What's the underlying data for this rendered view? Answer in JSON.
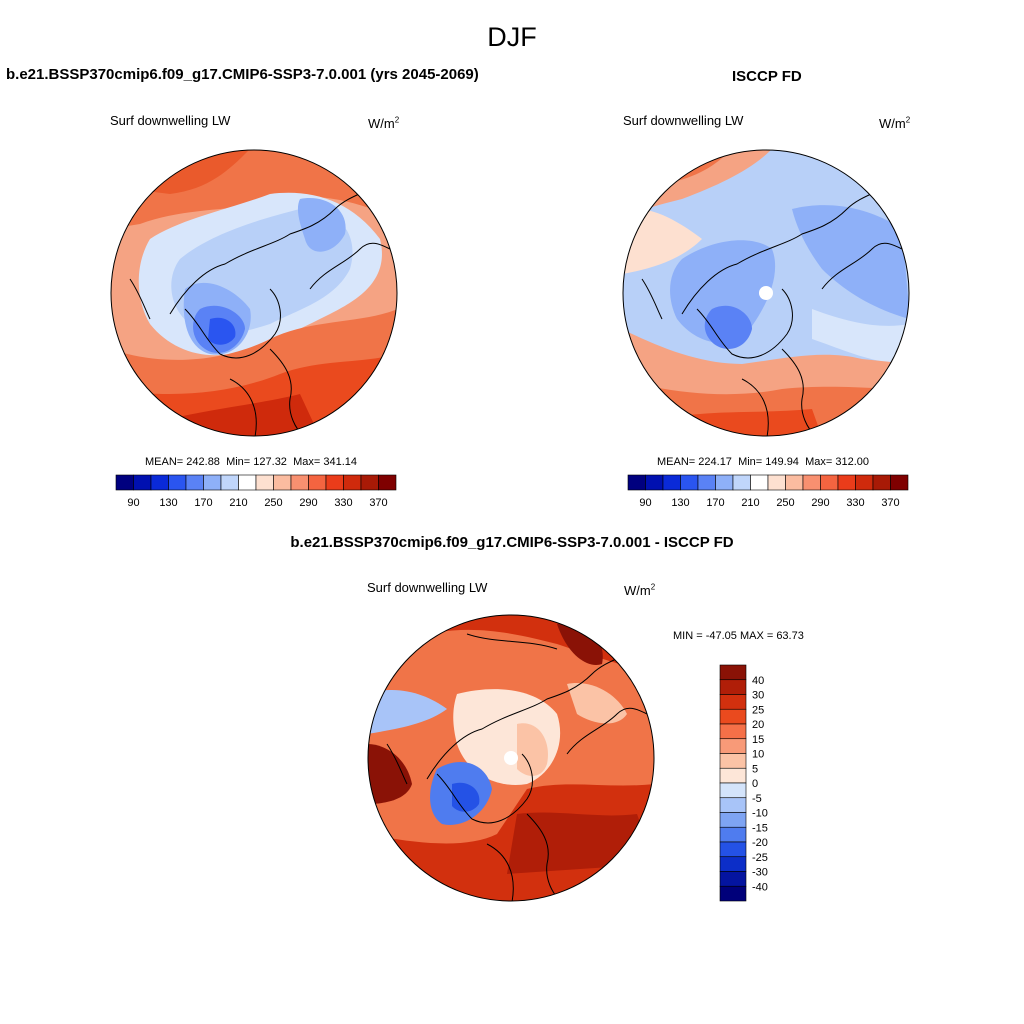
{
  "title": "DJF",
  "panels": [
    {
      "id": "model",
      "title": "b.e21.BSSP370cmip6.f09_g17.CMIP6-SSP3-7.0.001 (yrs 2045-2069)",
      "variable": "Surf downwelling LW",
      "units_base": "W/m",
      "units_exp": "2",
      "stats": {
        "mean_label": "MEAN=",
        "mean": "242.88",
        "min_label": "Min=",
        "min": "127.32",
        "max_label": "Max=",
        "max": "341.14"
      }
    },
    {
      "id": "obs",
      "title": "ISCCP FD",
      "variable": "Surf downwelling LW",
      "units_base": "W/m",
      "units_exp": "2",
      "stats": {
        "mean_label": "MEAN=",
        "mean": "224.17",
        "min_label": "Min=",
        "min": "149.94",
        "max_label": "Max=",
        "max": "312.00"
      }
    },
    {
      "id": "diff",
      "title": "b.e21.BSSP370cmip6.f09_g17.CMIP6-SSP3-7.0.001 - ISCCP FD",
      "variable": "Surf downwelling LW",
      "units_base": "W/m",
      "units_exp": "2",
      "stats_text": "MIN = -47.05 MAX =  63.73"
    }
  ],
  "horizontal_colorbar": {
    "tick_labels": [
      "90",
      "130",
      "170",
      "210",
      "250",
      "290",
      "330",
      "370"
    ],
    "colors": [
      "#00007f",
      "#0010b0",
      "#0a2ad8",
      "#2a55f0",
      "#5a82f5",
      "#8eb0f8",
      "#c0d6fb",
      "#ffffff",
      "#fde0d0",
      "#fbbca0",
      "#f89070",
      "#f46440",
      "#ea3c1a",
      "#cf2a0c",
      "#a81a06",
      "#7f0000"
    ]
  },
  "vertical_colorbar": {
    "labels": [
      "40",
      "30",
      "25",
      "20",
      "15",
      "10",
      "5",
      "0",
      "-5",
      "-10",
      "-15",
      "-20",
      "-25",
      "-30",
      "-40"
    ],
    "colors": [
      "#8a1206",
      "#b01e08",
      "#d2300e",
      "#ea4a1e",
      "#f57048",
      "#f89a78",
      "#fbc3a6",
      "#fde6d8",
      "#d4e4fb",
      "#a8c4f8",
      "#7ea4f3",
      "#4f7cef",
      "#2452e6",
      "#0c2ec8",
      "#0414a0",
      "#00007a"
    ]
  },
  "maps": [
    {
      "panel": "model",
      "base_color": "#f5a383",
      "has_pole_hole": false
    },
    {
      "panel": "obs",
      "base_color": "#b8d0f8",
      "has_pole_hole": true
    },
    {
      "panel": "diff",
      "base_color": "#f07448",
      "has_pole_hole": true
    }
  ]
}
